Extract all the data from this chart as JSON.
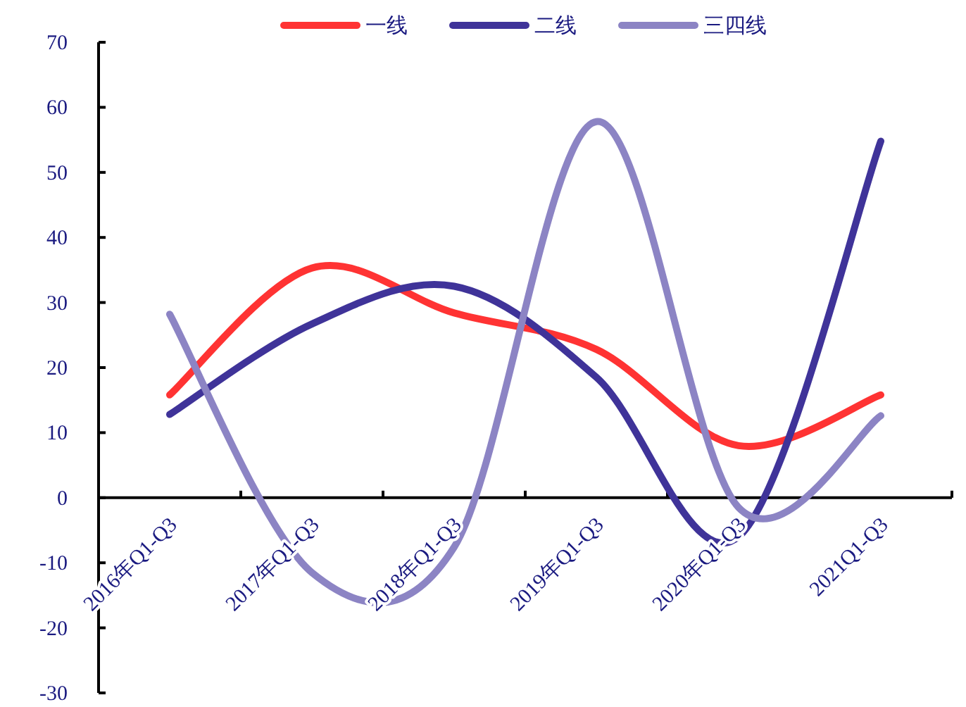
{
  "chart_data": {
    "type": "line",
    "categories": [
      "2016年Q1-Q3",
      "2017年Q1-Q3",
      "2018年Q1-Q3",
      "2019年Q1-Q3",
      "2020年Q1-Q3",
      "2021Q1-Q3"
    ],
    "series": [
      {
        "name": "一线",
        "color": "#ff3333",
        "values": [
          15.8,
          35.3,
          28.4,
          22.8,
          8.0,
          15.8
        ]
      },
      {
        "name": "二线",
        "color": "#3f3399",
        "values": [
          12.8,
          26.7,
          32.5,
          18.5,
          -6,
          54.8
        ]
      },
      {
        "name": "三四线",
        "color": "#8c84c4",
        "values": [
          28.2,
          -11.5,
          -7.6,
          57.8,
          -1.5,
          12.6
        ]
      }
    ],
    "ylim": [
      -30,
      70
    ],
    "yticks": [
      -30,
      -20,
      -10,
      0,
      10,
      20,
      30,
      40,
      50,
      60,
      70
    ],
    "legend": "top",
    "grid": false
  }
}
